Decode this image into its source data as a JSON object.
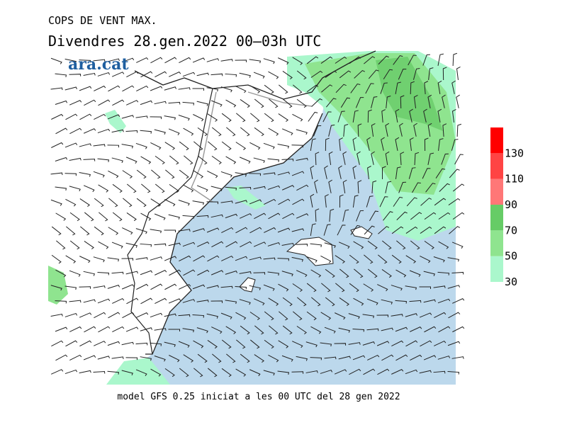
{
  "header": {
    "title": "COPS DE VENT MAX.",
    "subtitle": "Divendres  28.gen.2022 00–03h UTC",
    "logo": "ara.cat"
  },
  "footer": "model GFS 0.25 iniciat a les 00 UTC del 28 gen 2022",
  "colorbar": {
    "ticks": [
      30,
      50,
      70,
      90,
      110,
      130
    ],
    "colors": [
      "#aaf7cc",
      "#8fe48f",
      "#66cc66",
      "#ff7777",
      "#ff4444",
      "#ff0000"
    ]
  }
}
